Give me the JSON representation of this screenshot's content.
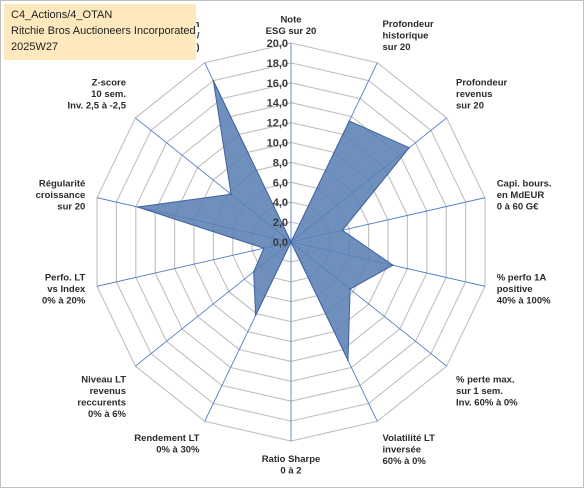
{
  "header": {
    "line1": "C4_Actions/4_OTAN",
    "line2": "Ritchie Bros Auctioneers Incorporated",
    "line3": "2025W27"
  },
  "chart_data": {
    "type": "radar",
    "axes": [
      [
        "Note",
        "ESG sur 20"
      ],
      [
        "Profondeur",
        "historique",
        "sur 20"
      ],
      [
        "Profondeur",
        "revenus",
        "sur 20"
      ],
      [
        "Capi. bours.",
        "en MdEUR",
        "0 à 60 G€"
      ],
      [
        "% perfo 1A",
        "positive",
        "40% à 100%"
      ],
      [
        "% perte max.",
        "sur 1 sem.",
        "Inv. 60% à 0%"
      ],
      [
        "Volatilité LT",
        "inversée",
        "60% à 0%"
      ],
      [
        "Ratio Sharpe",
        "0 à 2"
      ],
      [
        "Rendement LT",
        "0% à 30%"
      ],
      [
        "Niveau LT",
        "revenus",
        "reccurents",
        "0% à 6%"
      ],
      [
        "Perfo. LT",
        "vs Index",
        "0% à 20%"
      ],
      [
        "Régularité",
        "croissance",
        "sur 20"
      ],
      [
        "Z-score",
        "10 sem.",
        "Inv. 2,5 à -2,5"
      ],
      [
        "Momentum",
        "Achat (20) /",
        "Vente (0)"
      ]
    ],
    "values": [
      0.0,
      13.5,
      15.2,
      5.3,
      10.5,
      7.6,
      13.2,
      0.0,
      8.2,
      4.8,
      2.8,
      15.8,
      7.7,
      18.0
    ],
    "rlim": [
      0,
      20
    ],
    "ticks": [
      "0,0",
      "2,0",
      "4,0",
      "6,0",
      "8,0",
      "10,0",
      "12,0",
      "14,0",
      "16,0",
      "18,0",
      "20,0"
    ],
    "colors": {
      "fill": "#5b7fb4",
      "stroke": "#3f62a0",
      "spoke": "#4472c4",
      "grid": "#bfbfbf"
    },
    "grid": true,
    "legend": "none"
  }
}
